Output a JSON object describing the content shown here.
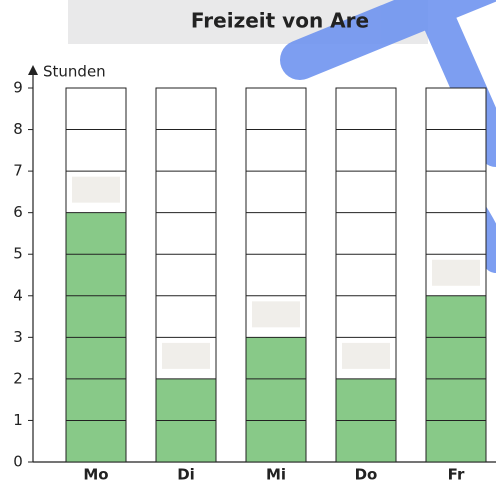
{
  "chart_data": {
    "type": "bar",
    "title": "Freizeit von Are",
    "y_label": "Stunden",
    "categories": [
      "Mo",
      "Di",
      "Mi",
      "Do",
      "Fr"
    ],
    "values": [
      6,
      2,
      3,
      2,
      4
    ],
    "color": "#88c988",
    "ylim": [
      0,
      9
    ],
    "yticks": [
      0,
      1,
      2,
      3,
      4,
      5,
      6,
      7,
      8,
      9
    ],
    "grid": true
  }
}
